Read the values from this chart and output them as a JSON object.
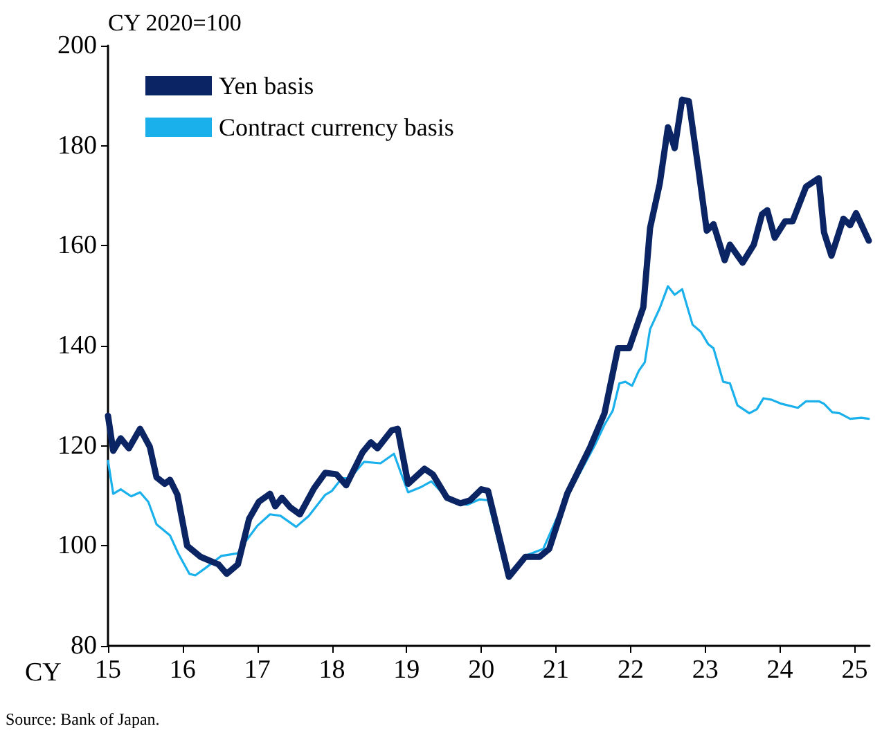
{
  "chart_data": {
    "type": "line",
    "ylabel": "CY 2020=100",
    "xlabel": "CY",
    "xlim": [
      15,
      25.2
    ],
    "xticks": [
      15,
      16,
      17,
      18,
      19,
      20,
      21,
      22,
      23,
      24,
      25
    ],
    "ylim": [
      80,
      200
    ],
    "yticks": [
      80,
      100,
      120,
      140,
      160,
      180,
      200
    ],
    "grid": false,
    "legend": "top left",
    "marker": "none",
    "line_style": "solid",
    "annotations": [
      "Source: Bank of Japan."
    ],
    "series": [
      {
        "name": "Yen basis",
        "color": "#0a2464",
        "x": [
          15.0,
          15.07,
          15.17,
          15.28,
          15.43,
          15.56,
          15.65,
          15.76,
          15.83,
          15.93,
          16.06,
          16.24,
          16.43,
          16.48,
          16.59,
          16.74,
          16.89,
          17.02,
          17.17,
          17.24,
          17.33,
          17.44,
          17.57,
          17.76,
          17.91,
          18.06,
          18.19,
          18.41,
          18.52,
          18.61,
          18.8,
          18.88,
          19.02,
          19.24,
          19.35,
          19.54,
          19.72,
          19.85,
          20.0,
          20.09,
          20.37,
          20.59,
          20.78,
          20.91,
          21.15,
          21.46,
          21.65,
          21.83,
          21.98,
          22.17,
          22.26,
          22.39,
          22.5,
          22.59,
          22.69,
          22.78,
          22.91,
          23.02,
          23.11,
          23.26,
          23.33,
          23.5,
          23.65,
          23.76,
          23.83,
          23.93,
          24.07,
          24.17,
          24.35,
          24.52,
          24.59,
          24.69,
          24.85,
          24.94,
          25.02,
          25.19
        ],
        "values": [
          126,
          119,
          121.5,
          119.5,
          123.4,
          119.8,
          113.7,
          112.4,
          113.2,
          110.2,
          100,
          97.8,
          96.6,
          96.3,
          94.4,
          96.3,
          105.4,
          108.8,
          110.4,
          107.9,
          109.6,
          107.7,
          106.3,
          111.5,
          114.6,
          114.3,
          112.1,
          118.7,
          120.7,
          119.5,
          123.1,
          123.4,
          112.4,
          115.4,
          114.3,
          109.6,
          108.5,
          109.1,
          111.3,
          111,
          93.8,
          97.8,
          97.8,
          99.4,
          110.4,
          119.8,
          126.5,
          139.5,
          139.5,
          147.7,
          163.5,
          172.4,
          183.7,
          179.5,
          189.2,
          188.9,
          175.1,
          163,
          164.3,
          157.1,
          160.2,
          156.6,
          160.2,
          166.3,
          167.1,
          161.6,
          164.9,
          164.9,
          171.8,
          173.5,
          162.7,
          158,
          165.4,
          164.1,
          166.5,
          161
        ]
      },
      {
        "name": "Contract currency basis",
        "color": "#1ab0ec",
        "x": [
          15.0,
          15.07,
          15.17,
          15.31,
          15.43,
          15.54,
          15.65,
          15.83,
          15.94,
          16.09,
          16.17,
          16.3,
          16.52,
          16.74,
          16.85,
          17.0,
          17.17,
          17.31,
          17.52,
          17.69,
          17.91,
          18.0,
          18.13,
          18.24,
          18.43,
          18.65,
          18.83,
          18.93,
          19.02,
          19.2,
          19.33,
          19.52,
          19.67,
          19.81,
          19.98,
          20.09,
          20.35,
          20.59,
          20.83,
          21.09,
          21.52,
          21.65,
          21.76,
          21.85,
          21.93,
          22.02,
          22.11,
          22.19,
          22.26,
          22.39,
          22.5,
          22.59,
          22.69,
          22.83,
          22.94,
          23.04,
          23.11,
          23.24,
          23.33,
          23.43,
          23.59,
          23.69,
          23.78,
          23.89,
          24.02,
          24.24,
          24.35,
          24.52,
          24.59,
          24.7,
          24.8,
          24.94,
          25.09,
          25.19
        ],
        "values": [
          117,
          110.4,
          111.3,
          109.9,
          110.7,
          108.8,
          104.3,
          102.1,
          98.5,
          94.4,
          94.1,
          95.5,
          98,
          98.5,
          101,
          104,
          106.3,
          106,
          103.8,
          106,
          110.2,
          111,
          113.5,
          113.5,
          116.8,
          116.5,
          118.4,
          114.3,
          110.7,
          111.8,
          112.9,
          109.9,
          108.5,
          108.2,
          109.3,
          109.1,
          93.6,
          98,
          99.4,
          108.2,
          120.1,
          124.2,
          127,
          132.5,
          132.8,
          132,
          135,
          136.7,
          143.3,
          147.5,
          151.9,
          150.2,
          151.3,
          144.2,
          142.8,
          140.3,
          139.5,
          132.8,
          132.5,
          128.1,
          126.5,
          127.3,
          129.5,
          129.2,
          128.4,
          127.6,
          128.9,
          128.9,
          128.4,
          126.7,
          126.5,
          125.4,
          125.6,
          125.4
        ]
      }
    ]
  }
}
